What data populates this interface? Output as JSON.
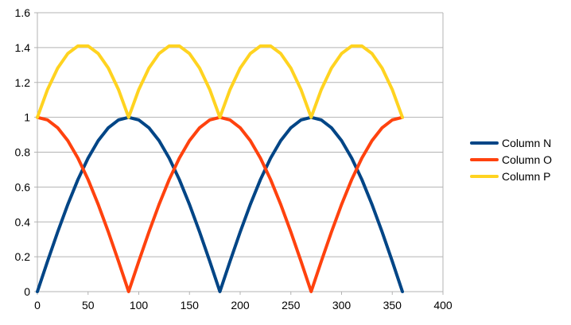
{
  "chart_data": {
    "type": "line",
    "title": "",
    "xlabel": "",
    "ylabel": "",
    "xlim": [
      0,
      400
    ],
    "ylim": [
      0,
      1.6
    ],
    "x_ticks": [
      0,
      50,
      100,
      150,
      200,
      250,
      300,
      350,
      400
    ],
    "y_ticks": [
      0,
      0.2,
      0.4,
      0.6,
      0.8,
      1,
      1.2,
      1.4,
      1.6
    ],
    "x_tick_labels": [
      "0",
      "50",
      "100",
      "150",
      "200",
      "250",
      "300",
      "350",
      "400"
    ],
    "y_tick_labels": [
      "0",
      "0.2",
      "0.4",
      "0.6",
      "0.8",
      "1",
      "1.2",
      "1.4",
      "1.6"
    ],
    "grid": {
      "x": false,
      "y": true
    },
    "legend": {
      "position": "right"
    },
    "x": [
      0,
      10,
      20,
      30,
      40,
      50,
      60,
      70,
      80,
      90,
      100,
      110,
      120,
      130,
      140,
      150,
      160,
      170,
      180,
      190,
      200,
      210,
      220,
      230,
      240,
      250,
      260,
      270,
      280,
      290,
      300,
      310,
      320,
      330,
      340,
      350,
      360
    ],
    "series": [
      {
        "name": "Column N",
        "color": "#004586",
        "values": [
          0,
          0.174,
          0.342,
          0.5,
          0.643,
          0.766,
          0.866,
          0.94,
          0.985,
          1,
          0.985,
          0.94,
          0.866,
          0.766,
          0.643,
          0.5,
          0.342,
          0.174,
          0,
          0.174,
          0.342,
          0.5,
          0.643,
          0.766,
          0.866,
          0.94,
          0.985,
          1,
          0.985,
          0.94,
          0.866,
          0.766,
          0.643,
          0.5,
          0.342,
          0.174,
          0
        ]
      },
      {
        "name": "Column O",
        "color": "#ff420e",
        "values": [
          1,
          0.985,
          0.94,
          0.866,
          0.766,
          0.643,
          0.5,
          0.342,
          0.174,
          0,
          0.174,
          0.342,
          0.5,
          0.643,
          0.766,
          0.866,
          0.94,
          0.985,
          1,
          0.985,
          0.94,
          0.866,
          0.766,
          0.643,
          0.5,
          0.342,
          0.174,
          0,
          0.174,
          0.342,
          0.5,
          0.643,
          0.766,
          0.866,
          0.94,
          0.985,
          1
        ]
      },
      {
        "name": "Column P",
        "color": "#ffd320",
        "values": [
          1,
          1.159,
          1.282,
          1.366,
          1.409,
          1.409,
          1.366,
          1.282,
          1.159,
          1,
          1.159,
          1.282,
          1.366,
          1.409,
          1.409,
          1.366,
          1.282,
          1.159,
          1,
          1.159,
          1.282,
          1.366,
          1.409,
          1.409,
          1.366,
          1.282,
          1.159,
          1,
          1.159,
          1.282,
          1.366,
          1.409,
          1.409,
          1.366,
          1.282,
          1.159,
          1
        ]
      }
    ]
  }
}
